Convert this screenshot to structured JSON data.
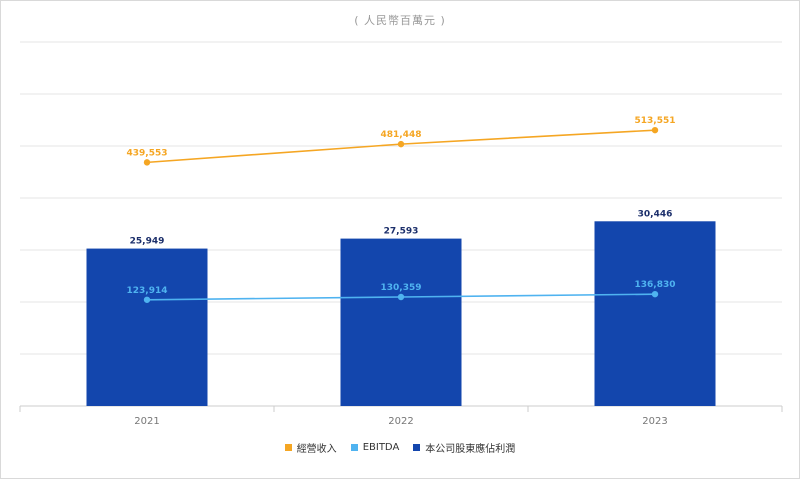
{
  "unit_label": "( 人民幣百萬元 )",
  "colors": {
    "revenue": "#f5a623",
    "ebitda": "#4fb3f0",
    "profit": "#1346ad",
    "grid": "#e6e6e6",
    "axis": "#cccccc",
    "tick": "#777777"
  },
  "legend": [
    {
      "label": "經營收入",
      "color": "#f5a623"
    },
    {
      "label": "EBITDA",
      "color": "#4fb3f0"
    },
    {
      "label": "本公司股東應佔利潤",
      "color": "#1346ad"
    }
  ],
  "chart_data": {
    "type": "bar",
    "categories": [
      "2021",
      "2022",
      "2023"
    ],
    "series": [
      {
        "name": "經營收入",
        "kind": "line",
        "values": [
          439553,
          481448,
          513551
        ],
        "labels": [
          "439,553",
          "481,448",
          "513,551"
        ]
      },
      {
        "name": "EBITDA",
        "kind": "line",
        "values": [
          123914,
          130359,
          136830
        ],
        "labels": [
          "123,914",
          "130,359",
          "136,830"
        ]
      },
      {
        "name": "本公司股東應佔利潤",
        "kind": "bar",
        "values": [
          25949,
          27593,
          30446
        ],
        "labels": [
          "25,949",
          "27,593",
          "30,446"
        ]
      }
    ],
    "title": "( 人民幣百萬元 )",
    "legend_position": "bottom",
    "grid": true
  }
}
